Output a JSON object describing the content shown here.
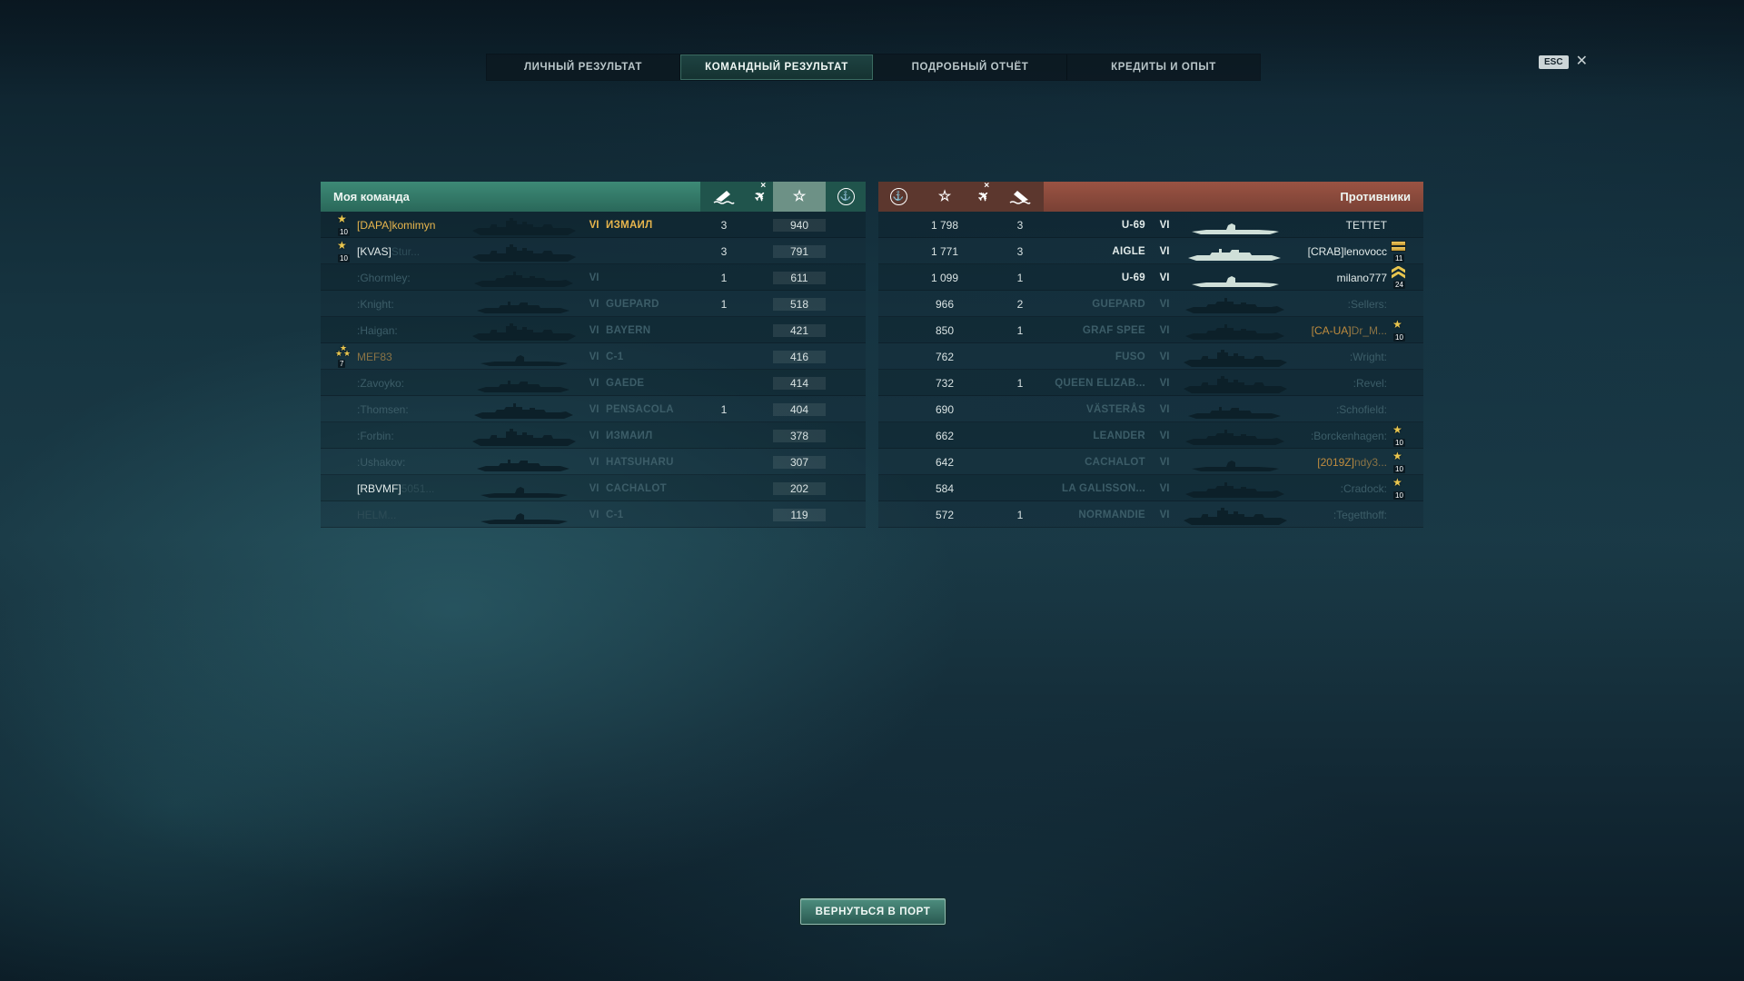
{
  "tabs": [
    {
      "label": "ЛИЧНЫЙ РЕЗУЛЬТАТ",
      "active": false
    },
    {
      "label": "КОМАНДНЫЙ РЕЗУЛЬТАТ",
      "active": true
    },
    {
      "label": "ПОДРОБНЫЙ ОТЧЁТ",
      "active": false
    },
    {
      "label": "КРЕДИТЫ И ОПЫТ",
      "active": false
    }
  ],
  "esc": {
    "label": "ESC",
    "close_icon": "x"
  },
  "columns": {
    "kills_icon": "ship-sinking",
    "aircraft_icon": "plane-crossed-out",
    "xp_icon": "star-outline",
    "points_icon": "anchor-in-circle"
  },
  "colors": {
    "my_team_header": "#2f7a66",
    "enemy_header": "#8f4c3c",
    "gold": "#e8b64d",
    "clan_orange": "#c08c3e"
  },
  "table": {
    "my_team": {
      "title": "Моя команда",
      "rows": [
        {
          "badge": {
            "icon": "star",
            "label": "10"
          },
          "clan": "[DAPA]",
          "clan_style": "gold",
          "name": "komimyn",
          "name_style": "gold",
          "tier": "VI",
          "ship": "ИЗМАИЛ",
          "ship_style": "gold",
          "kills": "3",
          "planes": "",
          "xp": "940",
          "type": "battleship",
          "sil": "dark"
        },
        {
          "badge": {
            "icon": "star",
            "label": "10"
          },
          "clan": "[KVAS]",
          "clan_style": "bright",
          "name": "Stur...",
          "name_style": "faint",
          "tier": "",
          "ship": "",
          "ship_style": "dim",
          "kills": "3",
          "planes": "",
          "xp": "791",
          "type": "battleship",
          "sil": "dark"
        },
        {
          "badge": null,
          "clan": "",
          "clan_style": "dim",
          "name": ":Ghormley:",
          "name_style": "dim",
          "tier": "VI",
          "ship": "",
          "ship_style": "dim",
          "kills": "1",
          "planes": "",
          "xp": "611",
          "type": "cruiser",
          "sil": "dark"
        },
        {
          "badge": null,
          "clan": "",
          "clan_style": "dim",
          "name": ":Knight:",
          "name_style": "dim",
          "tier": "VI",
          "ship": "GUEPARD",
          "ship_style": "dim",
          "kills": "1",
          "planes": "",
          "xp": "518",
          "type": "destroyer",
          "sil": "dark"
        },
        {
          "badge": null,
          "clan": "",
          "clan_style": "dim",
          "name": ":Haigan:",
          "name_style": "dim",
          "tier": "VI",
          "ship": "BAYERN",
          "ship_style": "dim",
          "kills": "",
          "planes": "",
          "xp": "421",
          "type": "battleship",
          "sil": "dark"
        },
        {
          "badge": {
            "icon": "star-cluster",
            "label": "7"
          },
          "clan": "",
          "clan_style": "dim",
          "name": "MEF83",
          "name_style": "dimgold",
          "tier": "VI",
          "ship": "C-1",
          "ship_style": "dim",
          "kills": "",
          "planes": "",
          "xp": "416",
          "type": "submarine",
          "sil": "dark"
        },
        {
          "badge": null,
          "clan": "",
          "clan_style": "dim",
          "name": ":Zavoyko:",
          "name_style": "dim",
          "tier": "VI",
          "ship": "GAEDE",
          "ship_style": "dim",
          "kills": "",
          "planes": "",
          "xp": "414",
          "type": "destroyer",
          "sil": "dark"
        },
        {
          "badge": null,
          "clan": "",
          "clan_style": "dim",
          "name": ":Thomsen:",
          "name_style": "dim",
          "tier": "VI",
          "ship": "PENSACOLA",
          "ship_style": "dim",
          "kills": "1",
          "planes": "",
          "xp": "404",
          "type": "cruiser",
          "sil": "dark"
        },
        {
          "badge": null,
          "clan": "",
          "clan_style": "dim",
          "name": ":Forbin:",
          "name_style": "dim",
          "tier": "VI",
          "ship": "ИЗМАИЛ",
          "ship_style": "dim",
          "kills": "",
          "planes": "",
          "xp": "378",
          "type": "battleship",
          "sil": "dark"
        },
        {
          "badge": null,
          "clan": "",
          "clan_style": "dim",
          "name": ":Ushakov:",
          "name_style": "dim",
          "tier": "VI",
          "ship": "HATSUHARU",
          "ship_style": "dim",
          "kills": "",
          "planes": "",
          "xp": "307",
          "type": "destroyer",
          "sil": "dark"
        },
        {
          "badge": null,
          "clan": "[RBVMF]",
          "clan_style": "bright",
          "name": "5051...",
          "name_style": "faint",
          "tier": "VI",
          "ship": "CACHALOT",
          "ship_style": "dim",
          "kills": "",
          "planes": "",
          "xp": "202",
          "type": "submarine",
          "sil": "dark"
        },
        {
          "badge": null,
          "clan": "",
          "clan_style": "dim",
          "name": "HELM...",
          "name_style": "faint",
          "tier": "VI",
          "ship": "C-1",
          "ship_style": "dim",
          "kills": "",
          "planes": "",
          "xp": "119",
          "type": "submarine",
          "sil": "dark"
        }
      ]
    },
    "enemies": {
      "title": "Противники",
      "rows": [
        {
          "badge": null,
          "clan": "",
          "clan_style": "bright",
          "name": "TETTET",
          "name_style": "bright",
          "tier": "VI",
          "ship": "U-69",
          "ship_style": "bright",
          "kills": "3",
          "planes": "",
          "xp": "1 798",
          "type": "submarine",
          "sil": "light"
        },
        {
          "badge": {
            "icon": "bars",
            "label": "11"
          },
          "clan": "[CRAB]",
          "clan_style": "bright",
          "name": "lenovocc",
          "name_style": "bright",
          "tier": "VI",
          "ship": "AIGLE",
          "ship_style": "bright",
          "kills": "3",
          "planes": "",
          "xp": "1 771",
          "type": "destroyer",
          "sil": "light"
        },
        {
          "badge": {
            "icon": "chevrons",
            "label": "24"
          },
          "clan": "",
          "clan_style": "bright",
          "name": "milano777",
          "name_style": "bright",
          "tier": "VI",
          "ship": "U-69",
          "ship_style": "bright",
          "kills": "1",
          "planes": "",
          "xp": "1 099",
          "type": "submarine",
          "sil": "light"
        },
        {
          "badge": null,
          "clan": "",
          "clan_style": "dim",
          "name": ":Sellers:",
          "name_style": "dim",
          "tier": "VI",
          "ship": "GUEPARD",
          "ship_style": "dim",
          "kills": "2",
          "planes": "",
          "xp": "966",
          "type": "cruiser",
          "sil": "dark"
        },
        {
          "badge": {
            "icon": "star",
            "label": "10"
          },
          "clan": "[CA-UA]",
          "clan_style": "orange",
          "name": "Dr_M...",
          "name_style": "dimgold",
          "tier": "VI",
          "ship": "GRAF SPEE",
          "ship_style": "dim",
          "kills": "1",
          "planes": "",
          "xp": "850",
          "type": "cruiser",
          "sil": "dark"
        },
        {
          "badge": null,
          "clan": "",
          "clan_style": "dim",
          "name": ":Wright:",
          "name_style": "dim",
          "tier": "VI",
          "ship": "FUSO",
          "ship_style": "dim",
          "kills": "",
          "planes": "",
          "xp": "762",
          "type": "battleship",
          "sil": "dark"
        },
        {
          "badge": null,
          "clan": "",
          "clan_style": "dim",
          "name": ":Revel:",
          "name_style": "dim",
          "tier": "VI",
          "ship": "QUEEN ELIZAB...",
          "ship_style": "dim",
          "kills": "1",
          "planes": "",
          "xp": "732",
          "type": "battleship",
          "sil": "dark"
        },
        {
          "badge": null,
          "clan": "",
          "clan_style": "dim",
          "name": ":Schofield:",
          "name_style": "dim",
          "tier": "VI",
          "ship": "VÄSTERÅS",
          "ship_style": "dim",
          "kills": "",
          "planes": "",
          "xp": "690",
          "type": "destroyer",
          "sil": "dark"
        },
        {
          "badge": {
            "icon": "star",
            "label": "10"
          },
          "clan": "",
          "clan_style": "dim",
          "name": ":Borckenhagen:",
          "name_style": "dim",
          "tier": "VI",
          "ship": "LEANDER",
          "ship_style": "dim",
          "kills": "",
          "planes": "",
          "xp": "662",
          "type": "cruiser",
          "sil": "dark"
        },
        {
          "badge": {
            "icon": "star",
            "label": "10"
          },
          "clan": "[2019Z]",
          "clan_style": "orange",
          "name": "ndy3...",
          "name_style": "dimgold",
          "tier": "VI",
          "ship": "CACHALOT",
          "ship_style": "dim",
          "kills": "",
          "planes": "",
          "xp": "642",
          "type": "submarine",
          "sil": "dark"
        },
        {
          "badge": {
            "icon": "star",
            "label": "10"
          },
          "clan": "",
          "clan_style": "dim",
          "name": ":Cradock:",
          "name_style": "dim",
          "tier": "VI",
          "ship": "LA GALISSON...",
          "ship_style": "dim",
          "kills": "",
          "planes": "",
          "xp": "584",
          "type": "cruiser",
          "sil": "dark"
        },
        {
          "badge": null,
          "clan": "",
          "clan_style": "dim",
          "name": ":Tegetthoff:",
          "name_style": "dim",
          "tier": "VI",
          "ship": "NORMANDIE",
          "ship_style": "dim",
          "kills": "1",
          "planes": "",
          "xp": "572",
          "type": "battleship",
          "sil": "dark"
        }
      ]
    }
  },
  "footer": {
    "return_button": "ВЕРНУТЬСЯ В ПОРТ"
  }
}
